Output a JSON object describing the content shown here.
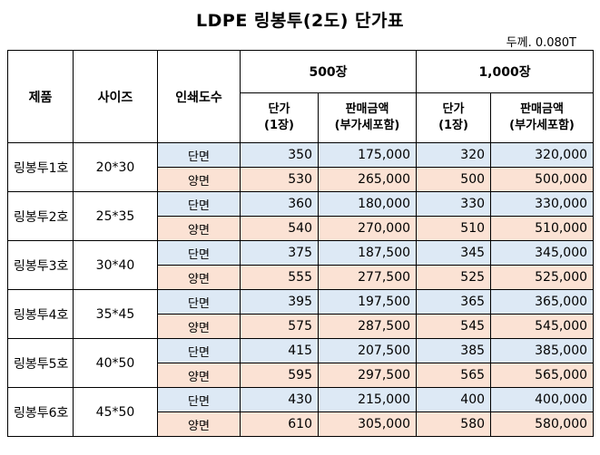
{
  "title": "LDPE 링봉투(2도) 단가표",
  "thickness": "두께. 0.080T",
  "headers": {
    "product": "제품",
    "size": "사이즈",
    "print": "인쇄도수",
    "group1": "500장",
    "group2": "1,000장",
    "unit_price_line1": "단가",
    "unit_price_line2": "(1장)",
    "sale_amount_line1": "판매금액",
    "sale_amount_line2": "(부가세포함)"
  },
  "colors": {
    "single_side_bg": "#dde9f5",
    "double_side_bg": "#fbe2d4"
  },
  "products": [
    {
      "name": "링봉투1호",
      "size": "20*30",
      "rows": [
        {
          "print": "단면",
          "p500_unit": "350",
          "p500_total": "175,000",
          "p1000_unit": "320",
          "p1000_total": "320,000"
        },
        {
          "print": "양면",
          "p500_unit": "530",
          "p500_total": "265,000",
          "p1000_unit": "500",
          "p1000_total": "500,000"
        }
      ]
    },
    {
      "name": "링봉투2호",
      "size": "25*35",
      "rows": [
        {
          "print": "단면",
          "p500_unit": "360",
          "p500_total": "180,000",
          "p1000_unit": "330",
          "p1000_total": "330,000"
        },
        {
          "print": "양면",
          "p500_unit": "540",
          "p500_total": "270,000",
          "p1000_unit": "510",
          "p1000_total": "510,000"
        }
      ]
    },
    {
      "name": "링봉투3호",
      "size": "30*40",
      "rows": [
        {
          "print": "단면",
          "p500_unit": "375",
          "p500_total": "187,500",
          "p1000_unit": "345",
          "p1000_total": "345,000"
        },
        {
          "print": "양면",
          "p500_unit": "555",
          "p500_total": "277,500",
          "p1000_unit": "525",
          "p1000_total": "525,000"
        }
      ]
    },
    {
      "name": "링봉투4호",
      "size": "35*45",
      "rows": [
        {
          "print": "단면",
          "p500_unit": "395",
          "p500_total": "197,500",
          "p1000_unit": "365",
          "p1000_total": "365,000"
        },
        {
          "print": "양면",
          "p500_unit": "575",
          "p500_total": "287,500",
          "p1000_unit": "545",
          "p1000_total": "545,000"
        }
      ]
    },
    {
      "name": "링봉투5호",
      "size": "40*50",
      "rows": [
        {
          "print": "단면",
          "p500_unit": "415",
          "p500_total": "207,500",
          "p1000_unit": "385",
          "p1000_total": "385,000"
        },
        {
          "print": "양면",
          "p500_unit": "595",
          "p500_total": "297,500",
          "p1000_unit": "565",
          "p1000_total": "565,000"
        }
      ]
    },
    {
      "name": "링봉투6호",
      "size": "45*50",
      "rows": [
        {
          "print": "단면",
          "p500_unit": "430",
          "p500_total": "215,000",
          "p1000_unit": "400",
          "p1000_total": "400,000"
        },
        {
          "print": "양면",
          "p500_unit": "610",
          "p500_total": "305,000",
          "p1000_unit": "580",
          "p1000_total": "580,000"
        }
      ]
    }
  ]
}
